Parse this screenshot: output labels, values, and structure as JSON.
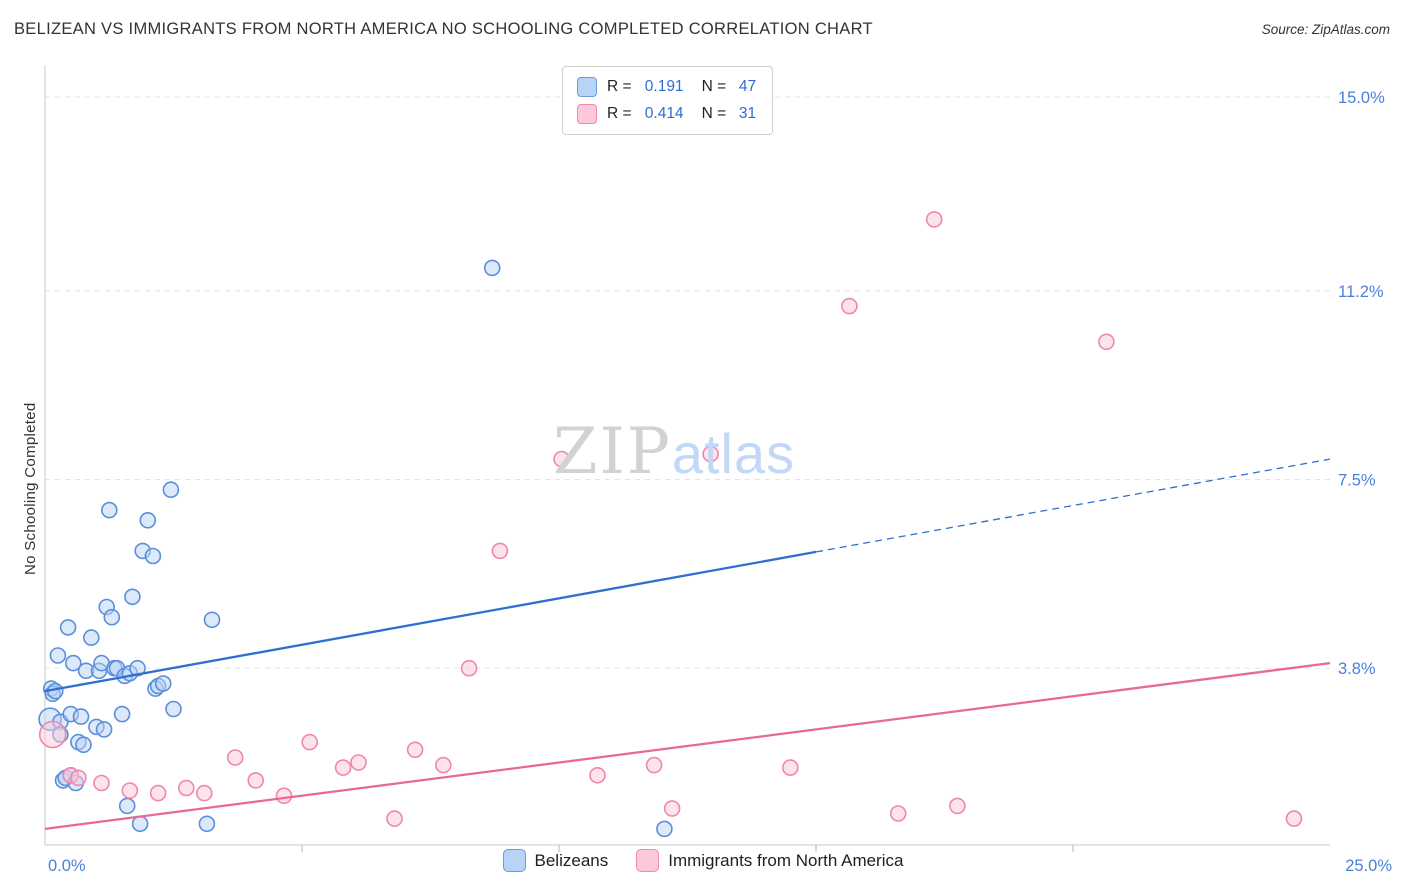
{
  "header": {
    "title": "BELIZEAN VS IMMIGRANTS FROM NORTH AMERICA NO SCHOOLING COMPLETED CORRELATION CHART",
    "source": "Source: ZipAtlas.com"
  },
  "watermark": {
    "part1": "ZIP",
    "part2": "atlas"
  },
  "legend_box": {
    "rows": [
      {
        "series": "Belizeans",
        "r_label": "R =",
        "r_value": "0.191",
        "n_label": "N =",
        "n_value": "47"
      },
      {
        "series": "Immigrants from North America",
        "r_label": "R =",
        "r_value": "0.414",
        "n_label": "N =",
        "n_value": "31"
      }
    ]
  },
  "chart_data": {
    "type": "scatter",
    "title": "BELIZEAN VS IMMIGRANTS FROM NORTH AMERICA NO SCHOOLING COMPLETED CORRELATION CHART",
    "xlabel": "",
    "ylabel": "No Schooling Completed",
    "xlim": [
      0,
      25
    ],
    "ylim": [
      0,
      15.6
    ],
    "grid": "horizontal-dashed",
    "legend_position": "bottom-center",
    "axis_label_color": "#4a80d9",
    "xticks": [
      {
        "value": 0,
        "label": "0.0%"
      },
      {
        "value": 25,
        "label": "25.0%"
      }
    ],
    "xtick_marks": [
      5,
      10,
      15,
      20
    ],
    "yticks": [
      {
        "value": 3.8,
        "label": "3.8%"
      },
      {
        "value": 7.5,
        "label": "7.5%"
      },
      {
        "value": 11.2,
        "label": "11.2%"
      },
      {
        "value": 15.0,
        "label": "15.0%"
      }
    ],
    "series": [
      {
        "name": "Belizeans",
        "R": 0.191,
        "N": 47,
        "stroke": "#5b8fd9",
        "fill": "#b7d4f7",
        "trend": {
          "x0": 0,
          "y0": 3.35,
          "x1": 25,
          "y1": 7.9,
          "solid_until_x": 15,
          "color": "#2f6fce"
        },
        "points": [
          [
            0.1,
            2.8,
            11
          ],
          [
            0.12,
            3.4
          ],
          [
            0.15,
            3.3
          ],
          [
            0.2,
            3.35
          ],
          [
            0.25,
            4.05
          ],
          [
            0.3,
            2.75
          ],
          [
            0.3,
            2.5
          ],
          [
            0.35,
            1.6
          ],
          [
            0.4,
            1.65
          ],
          [
            0.45,
            4.6
          ],
          [
            0.5,
            2.9
          ],
          [
            0.5,
            1.7
          ],
          [
            0.55,
            3.9
          ],
          [
            0.6,
            1.55
          ],
          [
            0.65,
            2.35
          ],
          [
            0.7,
            2.85
          ],
          [
            0.75,
            2.3
          ],
          [
            0.8,
            3.75
          ],
          [
            0.9,
            4.4
          ],
          [
            1.0,
            2.65
          ],
          [
            1.05,
            3.75
          ],
          [
            1.1,
            3.9
          ],
          [
            1.15,
            2.6
          ],
          [
            1.2,
            5.0
          ],
          [
            1.25,
            6.9
          ],
          [
            1.3,
            4.8
          ],
          [
            1.35,
            3.8
          ],
          [
            1.4,
            3.8
          ],
          [
            1.5,
            2.9
          ],
          [
            1.55,
            3.65
          ],
          [
            1.6,
            1.1
          ],
          [
            1.65,
            3.7
          ],
          [
            1.7,
            5.2
          ],
          [
            1.8,
            3.8
          ],
          [
            1.85,
            0.75
          ],
          [
            1.9,
            6.1
          ],
          [
            2.0,
            6.7
          ],
          [
            2.1,
            6.0
          ],
          [
            2.15,
            3.4
          ],
          [
            2.2,
            3.45
          ],
          [
            2.3,
            3.5
          ],
          [
            2.45,
            7.3
          ],
          [
            2.5,
            3.0
          ],
          [
            3.15,
            0.75
          ],
          [
            3.25,
            4.75
          ],
          [
            8.7,
            11.65
          ],
          [
            12.05,
            0.65
          ]
        ]
      },
      {
        "name": "Immigrants from North America",
        "R": 0.414,
        "N": 31,
        "stroke": "#ef87ab",
        "fill": "#fbc9d9",
        "trend": {
          "x0": 0,
          "y0": 0.65,
          "x1": 25,
          "y1": 3.9,
          "solid_until_x": 25,
          "color": "#e76a95"
        },
        "points": [
          [
            0.15,
            2.5,
            13
          ],
          [
            0.5,
            1.7
          ],
          [
            0.65,
            1.65
          ],
          [
            1.1,
            1.55
          ],
          [
            1.65,
            1.4
          ],
          [
            2.2,
            1.35
          ],
          [
            2.75,
            1.45
          ],
          [
            3.1,
            1.35
          ],
          [
            3.7,
            2.05
          ],
          [
            4.1,
            1.6
          ],
          [
            4.65,
            1.3
          ],
          [
            5.15,
            2.35
          ],
          [
            5.8,
            1.85
          ],
          [
            6.1,
            1.95
          ],
          [
            6.8,
            0.85
          ],
          [
            7.2,
            2.2
          ],
          [
            7.75,
            1.9
          ],
          [
            8.25,
            3.8
          ],
          [
            8.85,
            6.1
          ],
          [
            10.05,
            7.9
          ],
          [
            10.75,
            1.7
          ],
          [
            11.85,
            1.9
          ],
          [
            12.2,
            1.05
          ],
          [
            12.95,
            8.0
          ],
          [
            14.5,
            1.85
          ],
          [
            15.65,
            10.9
          ],
          [
            16.6,
            0.95
          ],
          [
            17.3,
            12.6
          ],
          [
            17.75,
            1.1
          ],
          [
            20.65,
            10.2
          ],
          [
            24.3,
            0.85
          ]
        ]
      }
    ]
  }
}
